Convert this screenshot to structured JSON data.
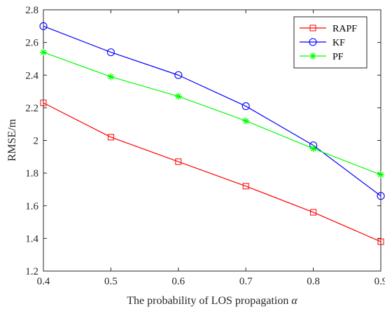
{
  "chart_data": {
    "type": "line",
    "xlabel": "The probability of LOS propagation",
    "xlabel_symbol": "α",
    "ylabel": "RMSE/m",
    "xlim": [
      0.4,
      0.9
    ],
    "ylim": [
      1.2,
      2.8
    ],
    "xticks": [
      "0.4",
      "0.5",
      "0.6",
      "0.7",
      "0.8",
      "0.9"
    ],
    "yticks": [
      "1.2",
      "1.4",
      "1.6",
      "1.8",
      "2",
      "2.2",
      "2.4",
      "2.6",
      "2.8"
    ],
    "x": [
      0.4,
      0.5,
      0.6,
      0.7,
      0.8,
      0.9
    ],
    "grid": false,
    "legend_position": "top-right",
    "series": [
      {
        "name": "RAPF",
        "color": "#ff0000",
        "marker": "square",
        "values": [
          2.23,
          2.02,
          1.87,
          1.72,
          1.56,
          1.38
        ]
      },
      {
        "name": "KF",
        "color": "#0000ff",
        "marker": "circle",
        "values": [
          2.7,
          2.54,
          2.4,
          2.21,
          1.97,
          1.66
        ]
      },
      {
        "name": "PF",
        "color": "#00ff00",
        "marker": "star",
        "values": [
          2.54,
          2.39,
          2.27,
          2.12,
          1.95,
          1.79
        ]
      }
    ]
  }
}
